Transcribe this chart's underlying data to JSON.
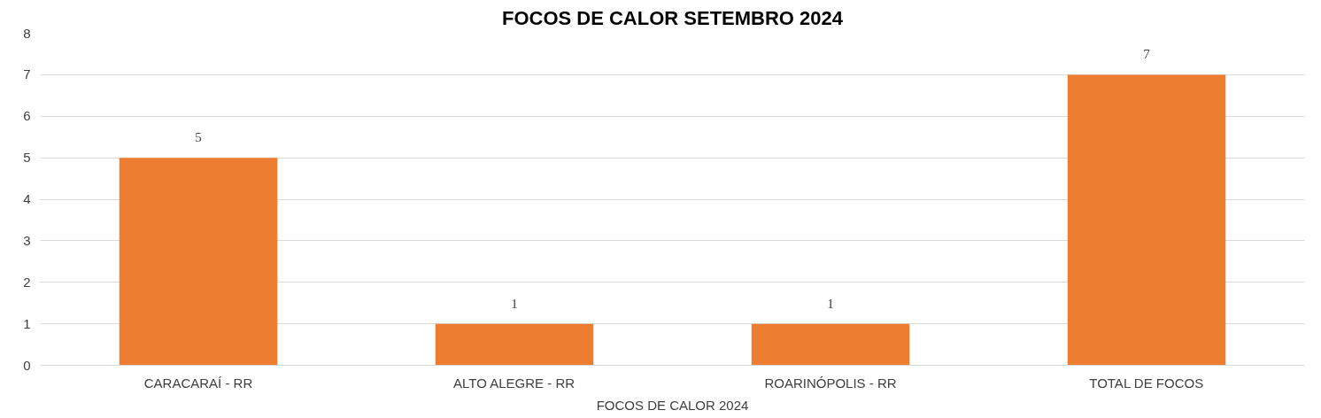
{
  "chart_data": {
    "type": "bar",
    "title": "FOCOS DE CALOR SETEMBRO 2024",
    "xlabel": "FOCOS DE CALOR 2024",
    "categories": [
      "CARACARAÍ - RR",
      "ALTO ALEGRE - RR",
      "ROARINÓPOLIS - RR",
      "TOTAL DE FOCOS"
    ],
    "values": [
      5,
      1,
      1,
      7
    ],
    "color": "#ed7d31",
    "ylim": [
      0,
      8
    ],
    "yticks": [
      0,
      1,
      2,
      3,
      4,
      5,
      6,
      7,
      8
    ],
    "grid": "y",
    "data_labels": true
  }
}
